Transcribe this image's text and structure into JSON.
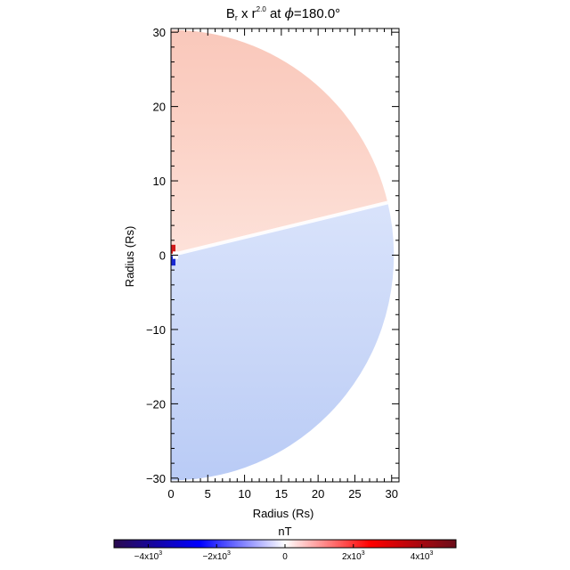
{
  "chart_data": {
    "type": "heatmap",
    "title": {
      "base": "B",
      "base_sub": "r",
      "mid": " x r",
      "mid_sup": "2.0",
      "tail": " at ",
      "phi": "ϕ",
      "angle_text": "=180.0°"
    },
    "xlabel": "Radius (Rs)",
    "ylabel": "Radius (Rs)",
    "xlim": [
      0,
      31
    ],
    "ylim": [
      -30.5,
      30.5
    ],
    "xticks": [
      "0",
      "5",
      "10",
      "15",
      "20",
      "25",
      "30"
    ],
    "xtick_values": [
      0,
      5,
      10,
      15,
      20,
      25,
      30
    ],
    "yticks": [
      "30",
      "20",
      "10",
      "0",
      "−10",
      "−20",
      "−30"
    ],
    "ytick_values": [
      30,
      20,
      10,
      0,
      -10,
      -20,
      -30
    ],
    "outer_radius": 30.3,
    "current_sheet_angle_deg": 13.5,
    "upper_lobe_value": 1000,
    "lower_lobe_value": -1200,
    "colorbar": {
      "label": "nT",
      "range": [
        -5000,
        5000
      ],
      "colors": [
        "#2a0a4e",
        "#0000ff",
        "#ffffff",
        "#ff0000",
        "#6a0d1a"
      ],
      "tick_values": [
        -4000,
        -2000,
        0,
        2000,
        4000
      ],
      "tick_labels": [
        {
          "base": "−4x10",
          "exp": "3"
        },
        {
          "base": "−2x10",
          "exp": "3"
        },
        {
          "base": "0",
          "exp": ""
        },
        {
          "base": "2x10",
          "exp": "3"
        },
        {
          "base": "4x10",
          "exp": "3"
        }
      ]
    }
  }
}
